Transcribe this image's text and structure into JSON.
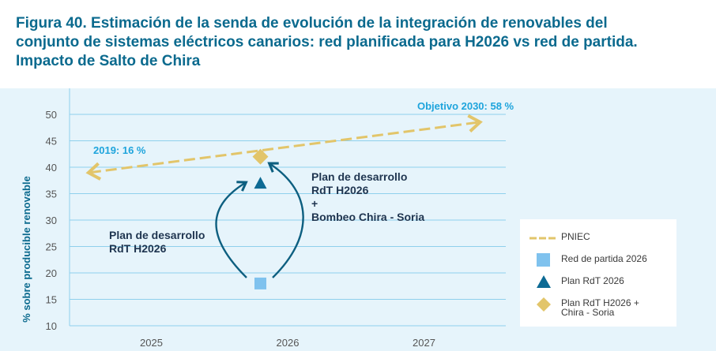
{
  "figure_title_lines": [
    "Figura 40. Estimación de la senda de evolución de la integración de renovables del",
    "conjunto de sistemas eléctricos canarios: red planificada para H2026 vs red de partida.",
    "Impacto de Salto de Chira"
  ],
  "colors": {
    "title": "#0b6a8e",
    "pniec": "#e2c56a",
    "red_partida": "#7fc2ee",
    "plan_rdt": "#0d6a94",
    "plan_chira": "#e2c56a",
    "grid": "#8fd0ec",
    "arrow": "#0d5f80",
    "label_blue": "#1ea4dc",
    "annotation": "#1f3550"
  },
  "chart_data": {
    "type": "scatter",
    "title": "Figura 40. Estimación de la senda de evolución de la integración de renovables del conjunto de sistemas eléctricos canarios: red planificada para H2026 vs red de partida. Impacto de Salto de Chira",
    "xlabel": "",
    "ylabel": "% sobre producible renovable",
    "xlim": [
      2024.4,
      2027.6
    ],
    "ylim": [
      10,
      50
    ],
    "x_ticks": [
      2025,
      2026,
      2027
    ],
    "x_tick_labels": [
      "2025",
      "2026",
      "2027"
    ],
    "y_ticks": [
      10,
      15,
      20,
      25,
      30,
      35,
      40,
      45,
      50
    ],
    "y_tick_labels": [
      "10",
      "15",
      "20",
      "25",
      "30",
      "35",
      "40",
      "45",
      "50"
    ],
    "grid": true,
    "legend_position": "right",
    "series": [
      {
        "name": "PNIEC",
        "kind": "dashed-line",
        "points": [
          {
            "x": 2024.55,
            "y": 39
          },
          {
            "x": 2027.4,
            "y": 48.5
          }
        ]
      },
      {
        "name": "Red de partida 2026",
        "kind": "square",
        "points": [
          {
            "x": 2025.8,
            "y": 18
          }
        ]
      },
      {
        "name": "Plan RdT 2026",
        "kind": "triangle",
        "points": [
          {
            "x": 2025.8,
            "y": 37
          }
        ]
      },
      {
        "name": "Plan RdT H2026 + Chira - Soria",
        "kind": "diamond",
        "points": [
          {
            "x": 2025.8,
            "y": 42
          }
        ]
      }
    ],
    "legend": [
      "PNIEC",
      "Red de partida 2026",
      "Plan RdT 2026",
      "Plan RdT H2026 +\nChira - Soria"
    ],
    "annotations": {
      "start_2019": "2019: 16 %",
      "target_2030": "Objetivo 2030: 58 %",
      "left_arrow_lines": [
        "Plan de desarrollo",
        "RdT H2026"
      ],
      "right_arrow_lines": [
        "Plan de desarrollo",
        "RdT H2026",
        "+",
        "Bombeo Chira - Soria"
      ]
    }
  }
}
